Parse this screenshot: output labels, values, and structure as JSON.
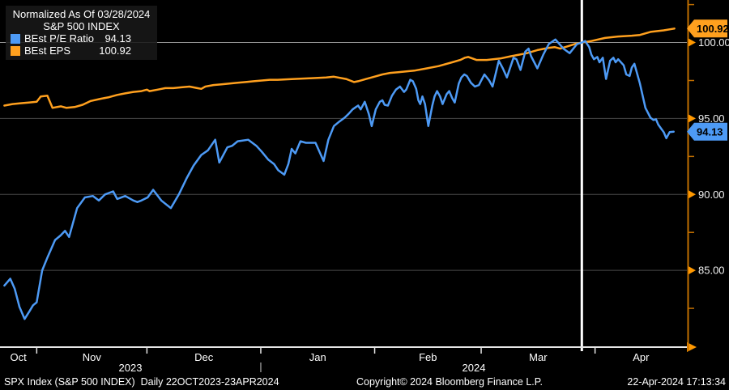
{
  "legend": {
    "title": "Normalized As Of 03/28/2024",
    "subtitle": "S&P 500 INDEX",
    "items": [
      {
        "label": "BEst P/E Ratio",
        "value": "94.13",
        "color": "#4d9af5"
      },
      {
        "label": "BEst EPS",
        "value": "100.92",
        "color": "#ffa01e"
      }
    ]
  },
  "footer": {
    "left": "SPX Index (S&P 500 INDEX)  Daily 22OCT2023-23APR2024",
    "center": "Copyright© 2024 Bloomberg Finance L.P.",
    "right": "22-Apr-2024 17:13:34"
  },
  "colors": {
    "background": "#000000",
    "pe_line": "#4d9af5",
    "eps_line": "#ffa01e",
    "grid_minor": "#484848",
    "grid_normalized": "#949494",
    "x_axis": "#e6e6e6",
    "y_axis": "#c06e00",
    "axis_arrow": "#ff9800",
    "marker_line": "#ffffff",
    "label_text": "#f1f1f1",
    "badge_text": "#000000"
  },
  "chart_data": {
    "type": "line",
    "title": "S&P 500 INDEX — Normalized As Of 03/28/2024",
    "x_axis": {
      "unit": "days since 22-Oct-2023",
      "range": [
        0,
        187
      ],
      "months": [
        {
          "label": "Oct",
          "start": 0
        },
        {
          "label": "Nov",
          "start": 10
        },
        {
          "label": "Dec",
          "start": 40
        },
        {
          "label": "Jan",
          "start": 71
        },
        {
          "label": "Feb",
          "start": 102
        },
        {
          "label": "Mar",
          "start": 131
        },
        {
          "label": "Apr",
          "start": 162
        }
      ],
      "year_labels": [
        {
          "label": "2023",
          "center_day": 35.5
        },
        {
          "label": "2024",
          "center_day": 129
        }
      ],
      "year_divider_day": 71
    },
    "y_axis": {
      "min": 80.0,
      "max": 102.8,
      "major_ticks": [
        85,
        90,
        95,
        100
      ],
      "minor_ticks": [
        82.5,
        87.5,
        92.5,
        97.5,
        102.5
      ],
      "normalized_level": 100
    },
    "marker_vline": {
      "day": 158.4,
      "date": "03/28/2024"
    },
    "legend_position": "top-left",
    "grid": "horizontal-only",
    "series": [
      {
        "name": "BEst EPS",
        "color": "#ffa01e",
        "last_value": 100.92,
        "value_label": "100.92",
        "points": [
          [
            1.2,
            95.85
          ],
          [
            3.4,
            95.95
          ],
          [
            5.6,
            96.0
          ],
          [
            7.8,
            96.05
          ],
          [
            10.0,
            96.1
          ],
          [
            11.1,
            96.45
          ],
          [
            12.9,
            96.5
          ],
          [
            14.3,
            95.7
          ],
          [
            16.6,
            95.8
          ],
          [
            18.1,
            95.7
          ],
          [
            20.3,
            95.75
          ],
          [
            22.5,
            95.9
          ],
          [
            24.7,
            96.15
          ],
          [
            27.5,
            96.3
          ],
          [
            29.7,
            96.4
          ],
          [
            31.9,
            96.55
          ],
          [
            34.1,
            96.65
          ],
          [
            36.3,
            96.75
          ],
          [
            38.5,
            96.8
          ],
          [
            40.0,
            96.9
          ],
          [
            40.7,
            96.8
          ],
          [
            42.9,
            96.9
          ],
          [
            45.0,
            97.0
          ],
          [
            47.2,
            97.0
          ],
          [
            49.4,
            97.05
          ],
          [
            51.6,
            97.1
          ],
          [
            53.7,
            97.0
          ],
          [
            54.8,
            96.95
          ],
          [
            55.9,
            97.1
          ],
          [
            58.1,
            97.2
          ],
          [
            60.3,
            97.25
          ],
          [
            62.5,
            97.3
          ],
          [
            64.7,
            97.35
          ],
          [
            66.9,
            97.4
          ],
          [
            69.1,
            97.45
          ],
          [
            71.3,
            97.5
          ],
          [
            73.4,
            97.55
          ],
          [
            75.6,
            97.55
          ],
          [
            80.0,
            97.6
          ],
          [
            84.4,
            97.65
          ],
          [
            88.8,
            97.7
          ],
          [
            90.9,
            97.75
          ],
          [
            94.2,
            97.6
          ],
          [
            95.3,
            97.5
          ],
          [
            96.4,
            97.4
          ],
          [
            97.5,
            97.45
          ],
          [
            99.7,
            97.6
          ],
          [
            101.9,
            97.75
          ],
          [
            104.1,
            97.9
          ],
          [
            106.2,
            98.0
          ],
          [
            108.4,
            98.05
          ],
          [
            110.6,
            98.1
          ],
          [
            112.8,
            98.15
          ],
          [
            116.2,
            98.3
          ],
          [
            119.4,
            98.45
          ],
          [
            123.1,
            98.7
          ],
          [
            125.3,
            98.85
          ],
          [
            126.6,
            99.0
          ],
          [
            127.5,
            99.05
          ],
          [
            129.7,
            98.85
          ],
          [
            132.5,
            98.85
          ],
          [
            136.2,
            98.95
          ],
          [
            139.1,
            99.1
          ],
          [
            141.3,
            99.2
          ],
          [
            143.5,
            99.3
          ],
          [
            146.3,
            99.5
          ],
          [
            149.4,
            99.65
          ],
          [
            151.0,
            99.7
          ],
          [
            152.5,
            99.6
          ],
          [
            154.5,
            99.75
          ],
          [
            156.5,
            99.9
          ],
          [
            158.4,
            100.0
          ],
          [
            161.0,
            100.1
          ],
          [
            164.7,
            100.3
          ],
          [
            168.3,
            100.4
          ],
          [
            172.0,
            100.45
          ],
          [
            174.2,
            100.5
          ],
          [
            177.1,
            100.7
          ],
          [
            180.7,
            100.8
          ],
          [
            183.6,
            100.92
          ]
        ]
      },
      {
        "name": "BEst P/E Ratio",
        "color": "#4d9af5",
        "last_value": 94.13,
        "value_label": "94.13",
        "points": [
          [
            1.2,
            84.0
          ],
          [
            2.8,
            84.45
          ],
          [
            4.0,
            83.8
          ],
          [
            5.3,
            82.6
          ],
          [
            6.7,
            81.8
          ],
          [
            8.0,
            82.3
          ],
          [
            9.0,
            82.7
          ],
          [
            10.0,
            82.9
          ],
          [
            11.5,
            85.0
          ],
          [
            13.0,
            85.9
          ],
          [
            15.0,
            87.0
          ],
          [
            16.5,
            87.3
          ],
          [
            17.7,
            87.6
          ],
          [
            18.8,
            87.2
          ],
          [
            21.0,
            89.1
          ],
          [
            23.1,
            89.8
          ],
          [
            25.3,
            89.9
          ],
          [
            26.9,
            89.6
          ],
          [
            28.6,
            90.0
          ],
          [
            30.8,
            90.2
          ],
          [
            31.9,
            89.7
          ],
          [
            34.1,
            89.9
          ],
          [
            36.3,
            89.6
          ],
          [
            37.4,
            89.5
          ],
          [
            38.5,
            89.6
          ],
          [
            40.2,
            89.8
          ],
          [
            41.7,
            90.3
          ],
          [
            43.9,
            89.6
          ],
          [
            46.5,
            89.1
          ],
          [
            48.7,
            90.0
          ],
          [
            50.9,
            91.1
          ],
          [
            52.7,
            91.9
          ],
          [
            54.8,
            92.6
          ],
          [
            56.6,
            92.9
          ],
          [
            58.6,
            93.6
          ],
          [
            59.7,
            92.1
          ],
          [
            60.8,
            92.6
          ],
          [
            61.9,
            93.1
          ],
          [
            63.2,
            93.2
          ],
          [
            64.7,
            93.5
          ],
          [
            67.6,
            93.6
          ],
          [
            69.8,
            93.2
          ],
          [
            71.3,
            92.8
          ],
          [
            73.0,
            92.3
          ],
          [
            74.6,
            92.0
          ],
          [
            75.7,
            91.6
          ],
          [
            77.4,
            91.3
          ],
          [
            78.5,
            92.0
          ],
          [
            79.4,
            93.0
          ],
          [
            80.4,
            92.7
          ],
          [
            81.8,
            93.5
          ],
          [
            83.3,
            93.4
          ],
          [
            85.9,
            93.4
          ],
          [
            88.1,
            92.2
          ],
          [
            89.4,
            93.6
          ],
          [
            90.9,
            94.5
          ],
          [
            92.4,
            94.8
          ],
          [
            93.8,
            95.05
          ],
          [
            94.9,
            95.3
          ],
          [
            96.0,
            95.6
          ],
          [
            96.9,
            95.75
          ],
          [
            97.5,
            95.85
          ],
          [
            98.2,
            95.6
          ],
          [
            99.3,
            96.1
          ],
          [
            100.4,
            95.3
          ],
          [
            101.2,
            94.5
          ],
          [
            102.3,
            95.6
          ],
          [
            103.4,
            96.1
          ],
          [
            104.1,
            96.2
          ],
          [
            104.7,
            95.9
          ],
          [
            105.6,
            95.85
          ],
          [
            106.7,
            96.5
          ],
          [
            107.8,
            96.9
          ],
          [
            108.9,
            97.1
          ],
          [
            110.0,
            96.75
          ],
          [
            110.6,
            96.9
          ],
          [
            111.7,
            97.55
          ],
          [
            112.4,
            97.45
          ],
          [
            113.3,
            96.95
          ],
          [
            113.9,
            96.2
          ],
          [
            114.4,
            95.95
          ],
          [
            115.0,
            96.45
          ],
          [
            115.7,
            95.95
          ],
          [
            116.6,
            94.5
          ],
          [
            117.7,
            95.85
          ],
          [
            118.3,
            96.45
          ],
          [
            119.0,
            96.8
          ],
          [
            119.8,
            96.45
          ],
          [
            120.5,
            95.95
          ],
          [
            121.6,
            96.6
          ],
          [
            122.3,
            96.8
          ],
          [
            123.1,
            96.35
          ],
          [
            123.8,
            96.05
          ],
          [
            124.9,
            97.3
          ],
          [
            125.6,
            97.7
          ],
          [
            126.4,
            97.9
          ],
          [
            127.1,
            97.8
          ],
          [
            128.2,
            97.35
          ],
          [
            129.3,
            97.1
          ],
          [
            130.4,
            97.2
          ],
          [
            131.0,
            97.5
          ],
          [
            131.9,
            97.9
          ],
          [
            133.2,
            97.5
          ],
          [
            134.1,
            97.1
          ],
          [
            135.8,
            98.8
          ],
          [
            136.9,
            98.3
          ],
          [
            138.0,
            97.7
          ],
          [
            139.8,
            99.0
          ],
          [
            140.6,
            98.9
          ],
          [
            141.7,
            98.2
          ],
          [
            143.0,
            99.4
          ],
          [
            143.9,
            99.6
          ],
          [
            144.6,
            99.1
          ],
          [
            146.3,
            98.3
          ],
          [
            147.9,
            99.2
          ],
          [
            149.4,
            99.9
          ],
          [
            151.2,
            100.2
          ],
          [
            153.4,
            99.6
          ],
          [
            155.1,
            99.3
          ],
          [
            157.1,
            99.9
          ],
          [
            158.4,
            100.0
          ],
          [
            159.3,
            100.1
          ],
          [
            160.4,
            99.7
          ],
          [
            161.0,
            99.2
          ],
          [
            161.7,
            98.9
          ],
          [
            162.6,
            99.05
          ],
          [
            163.2,
            98.7
          ],
          [
            164.1,
            99.0
          ],
          [
            165.0,
            97.6
          ],
          [
            166.1,
            98.8
          ],
          [
            167.0,
            99.0
          ],
          [
            167.6,
            98.7
          ],
          [
            168.3,
            98.9
          ],
          [
            169.8,
            98.5
          ],
          [
            170.5,
            97.9
          ],
          [
            171.4,
            97.8
          ],
          [
            172.0,
            98.35
          ],
          [
            172.7,
            98.6
          ],
          [
            174.2,
            97.3
          ],
          [
            175.7,
            95.7
          ],
          [
            177.1,
            95.05
          ],
          [
            177.9,
            94.9
          ],
          [
            178.6,
            94.95
          ],
          [
            179.2,
            94.6
          ],
          [
            180.1,
            94.3
          ],
          [
            180.7,
            94.1
          ],
          [
            181.4,
            93.7
          ],
          [
            182.3,
            94.1
          ],
          [
            183.4,
            94.13
          ]
        ]
      }
    ]
  }
}
